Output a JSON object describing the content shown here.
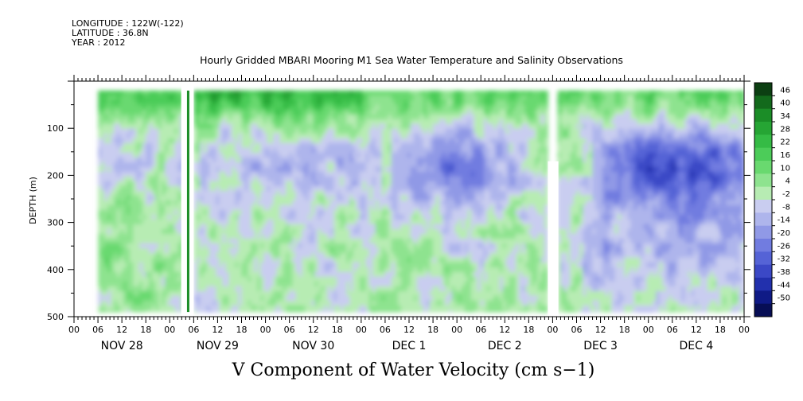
{
  "header": {
    "longitude": "LONGITUDE : 122W(-122)",
    "latitude": "LATITUDE : 36.8N",
    "year": "YEAR : 2012"
  },
  "title": "Hourly Gridded MBARI Mooring M1 Sea Water Temperature and Salinity Observations",
  "variable_title": "V Component of Water Velocity (cm s−1)",
  "chart_data": {
    "type": "heatmap",
    "title": "Hourly Gridded MBARI Mooring M1 Sea Water Temperature and Salinity Observations",
    "variable": "V Component of Water Velocity (cm s−1)",
    "ylabel": "DEPTH (m)",
    "y_ticks": [
      100,
      200,
      300,
      400,
      500
    ],
    "ylim": [
      500,
      0
    ],
    "depth_range_observed": [
      20,
      490
    ],
    "x_hour_ticks": [
      "00",
      "06",
      "12",
      "18",
      "00",
      "06",
      "12",
      "18",
      "00",
      "06",
      "12",
      "18",
      "00",
      "06",
      "12",
      "18",
      "00",
      "06",
      "12",
      "18",
      "00",
      "06",
      "12",
      "18",
      "00",
      "06",
      "12",
      "18",
      "00"
    ],
    "x_day_labels": [
      "NOV 28",
      "NOV 29",
      "NOV 30",
      "DEC  1",
      "DEC  2",
      "DEC  3",
      "DEC  4"
    ],
    "colorbar_levels": [
      "46",
      "40",
      "34",
      "28",
      "22",
      "16",
      "10",
      "4",
      "-2",
      "-8",
      "-14",
      "-20",
      "-26",
      "-32",
      "-38",
      "-44",
      "-50"
    ],
    "colorbar_colors": [
      "#0c3f12",
      "#136a1c",
      "#1b8d27",
      "#26a534",
      "#35bb45",
      "#4ccc59",
      "#69d96f",
      "#8ee38f",
      "#b7ecb3",
      "#c9cdf0",
      "#aeb5ec",
      "#9099e6",
      "#717ce0",
      "#5563d6",
      "#3b48c6",
      "#2230ad",
      "#0f1a86",
      "#070e55"
    ],
    "panels": [
      {
        "time_range_days": [
          0.25,
          1.15
        ],
        "surface_band": "green",
        "summary": "mixed green and lavender, mostly green at depth"
      },
      {
        "time_range_days": [
          1.25,
          2.95
        ],
        "surface_band": "dark green",
        "summary": "strong northward flow near surface, blue patches 150-250 m"
      },
      {
        "time_range_days": [
          2.95,
          4.95
        ],
        "surface_band": "green",
        "summary": "southward (blue) core around 150-200 m on DEC 1-2"
      },
      {
        "time_range_days": [
          5.05,
          7.0
        ],
        "surface_band": "green",
        "summary": "broad southward flow 100-400 m, strongest near DEC 4 18h"
      }
    ]
  }
}
